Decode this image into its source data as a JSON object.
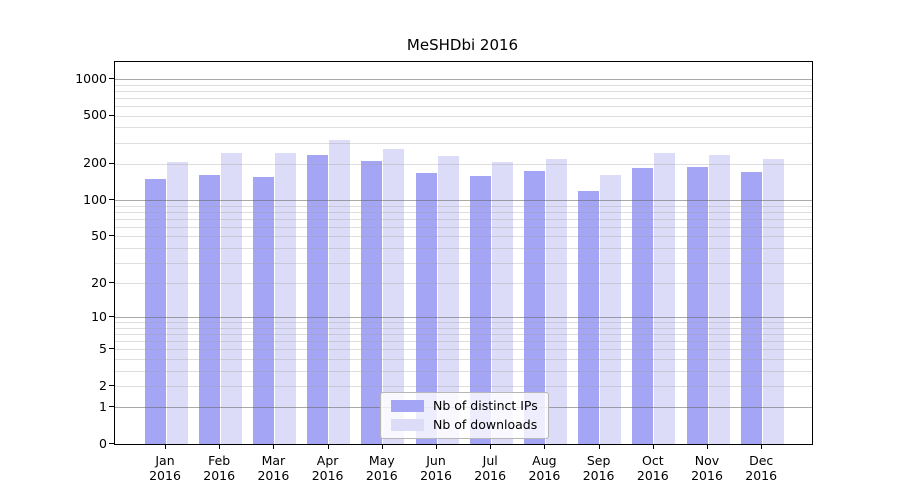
{
  "chart_data": {
    "type": "bar",
    "title": "MeSHDbi 2016",
    "categories": [
      "Jan",
      "Feb",
      "Mar",
      "Apr",
      "May",
      "Jun",
      "Jul",
      "Aug",
      "Sep",
      "Oct",
      "Nov",
      "Dec"
    ],
    "category_year": "2016",
    "series": [
      {
        "name": "Nb of distinct IPs",
        "color": "#a5a5f6",
        "values": [
          149,
          161,
          155,
          236,
          210,
          168,
          160,
          174,
          120,
          186,
          188,
          172
        ]
      },
      {
        "name": "Nb of downloads",
        "color": "#dcdcf9",
        "values": [
          206,
          244,
          247,
          315,
          266,
          234,
          207,
          218,
          163,
          247,
          238,
          220
        ]
      }
    ],
    "yscale": "log10(1+v)",
    "ylim": [
      0,
      1100
    ],
    "y_ticks": [
      0,
      1,
      2,
      5,
      10,
      20,
      50,
      100,
      200,
      500,
      1000
    ],
    "y_tick_labels": [
      "0",
      "1",
      "2",
      "5",
      "10",
      "20",
      "50",
      "100",
      "200",
      "500",
      "1000"
    ],
    "y_major_gridlines": [
      1,
      10,
      100,
      1000
    ],
    "y_minor_gridlines": [
      2,
      3,
      4,
      5,
      6,
      7,
      8,
      9,
      20,
      30,
      40,
      50,
      60,
      70,
      80,
      90,
      200,
      300,
      400,
      500,
      600,
      700,
      800,
      900
    ],
    "grid": "on",
    "legend_position": "lower center",
    "colors": {
      "bar_distinct_ips": "#a5a5f6",
      "bar_downloads": "#dcdcf9",
      "major_grid": "#8c8c8c",
      "minor_grid": "#dadada",
      "spine": "#000000",
      "text": "#000000",
      "background": "#ffffff"
    }
  }
}
